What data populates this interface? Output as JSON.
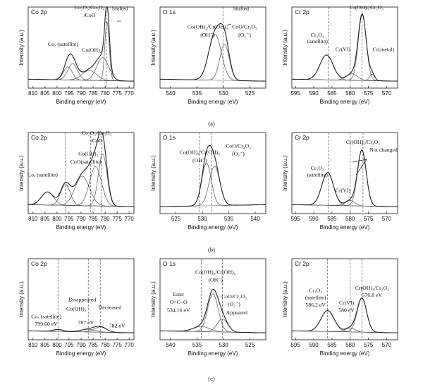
{
  "chart_data": {
    "type": "line",
    "rows": [
      {
        "caption": "(a)",
        "panels": [
          {
            "element": "Co 2p",
            "xlabel": "Binding energy (eV)",
            "ylabel": "Intensity (a.u.)",
            "xrange": [
              812,
              768
            ],
            "xticks": [
              810,
              805,
              800,
              795,
              790,
              785,
              780,
              775,
              770
            ],
            "dashes": [
              779.5
            ],
            "peaks": [
              {
                "center": 795.5,
                "height": 0.2,
                "width": 1.8
              },
              {
                "center": 793.5,
                "height": 0.25,
                "width": 2.0
              },
              {
                "center": 786.5,
                "height": 0.15,
                "width": 3.0
              },
              {
                "center": 781.0,
                "height": 0.35,
                "width": 2.5
              },
              {
                "center": 779.2,
                "height": 0.9,
                "width": 0.9
              }
            ],
            "annotations": [
              {
                "text": "Co₂O₃/Co₃O₄",
                "x": 786.5,
                "y": 1.12
              },
              {
                "text": "/CoO",
                "x": 786.5,
                "y": 1.0
              },
              {
                "text": "Shifted",
                "x": 773.0,
                "y": 1.1
              },
              {
                "text": "Co(OH)₂",
                "x": 785.5,
                "y": 0.47
              },
              {
                "text": "Coₓ (satellite)",
                "x": 797.5,
                "y": 0.56
              }
            ]
          },
          {
            "element": "O 1s",
            "xlabel": "Binding energy (eV)",
            "ylabel": "Intensity (a.u.)",
            "xrange": [
              542,
              522
            ],
            "xticks": [
              540,
              535,
              530,
              525
            ],
            "dashes": [
              530.1
            ],
            "peaks": [
              {
                "center": 531.6,
                "height": 0.7,
                "width": 1.2
              },
              {
                "center": 529.8,
                "height": 0.55,
                "width": 0.9
              }
            ],
            "annotations": [
              {
                "text": "Shifted",
                "x": 526.7,
                "y": 1.1
              },
              {
                "text": "Co(OH)₂/Cr(OH)₃",
                "x": 533.0,
                "y": 0.82
              },
              {
                "text": "(OH⁻)",
                "x": 533.0,
                "y": 0.7
              },
              {
                "text": "CoO/Cr₂O₃",
                "x": 526.0,
                "y": 0.82
              },
              {
                "text": "(O₂⁻)",
                "x": 526.0,
                "y": 0.7
              }
            ]
          },
          {
            "element": "Cr 2p",
            "xlabel": "Binding energy (eV)",
            "ylabel": "Intensity (a.u.)",
            "xrange": [
              596,
              567
            ],
            "xticks": [
              595,
              590,
              585,
              580,
              575,
              570
            ],
            "dashes": [
              586,
              580,
              576.8
            ],
            "peaks": [
              {
                "center": 586.5,
                "height": 0.38,
                "width": 1.8
              },
              {
                "center": 579.5,
                "height": 0.1,
                "width": 1.5
              },
              {
                "center": 576.7,
                "height": 1.0,
                "width": 1.1
              },
              {
                "center": 574.0,
                "height": 0.1,
                "width": 0.7
              }
            ],
            "annotations": [
              {
                "text": "Cr(OH)₃/Cr₂O₃",
                "x": 575.5,
                "y": 1.12
              },
              {
                "text": "Cr₂O₃",
                "x": 589.0,
                "y": 0.7
              },
              {
                "text": "(satellite)",
                "x": 589.0,
                "y": 0.6
              },
              {
                "text": "Cr(VI)",
                "x": 582.0,
                "y": 0.48
              },
              {
                "text": "Cr(metal)",
                "x": 570.8,
                "y": 0.48
              }
            ]
          }
        ]
      },
      {
        "caption": "(b)",
        "panels": [
          {
            "element": "Co 2p",
            "xlabel": "Binding energy (eV)",
            "ylabel": "Intensity (a.u.)",
            "xrange": [
              812,
              768
            ],
            "xticks": [
              810,
              805,
              800,
              795,
              790,
              785,
              780,
              775,
              770
            ],
            "dashes": [
              796.5,
              786,
              781.5
            ],
            "peaks": [
              {
                "center": 804.0,
                "height": 0.2,
                "width": 2.5
              },
              {
                "center": 796.5,
                "height": 0.32,
                "width": 2.0
              },
              {
                "center": 789.5,
                "height": 0.45,
                "width": 3.0
              },
              {
                "center": 784.0,
                "height": 0.6,
                "width": 2.5
              },
              {
                "center": 781.0,
                "height": 0.8,
                "width": 1.8
              }
            ],
            "annotations": [
              {
                "text": "Co₂O₃/Co₃O₄",
                "x": 783.5,
                "y": 1.12
              },
              {
                "text": "/CoO",
                "x": 783.5,
                "y": 1.0
              },
              {
                "text": "Co(OH)₂",
                "x": 787.0,
                "y": 0.8
              },
              {
                "text": "CoO(satellite)",
                "x": 788.0,
                "y": 0.68
              },
              {
                "text": "Coₓ (satellite)",
                "x": 806.0,
                "y": 0.48
              }
            ]
          },
          {
            "element": "O 1s",
            "xlabel": "Binding energy (eV)",
            "ylabel": "Intensity (a.u.)",
            "xrange": [
              522,
              542
            ],
            "xticks": [
              525,
              530,
              535,
              540
            ],
            "dashes": [
              529.5,
              531.8
            ],
            "peaks": [
              {
                "center": 530.8,
                "height": 0.65,
                "width": 0.9
              },
              {
                "center": 532.3,
                "height": 0.6,
                "width": 1.0
              }
            ],
            "annotations": [
              {
                "text": "Co(OH)₂/Cr(OH)₃",
                "x": 529.5,
                "y": 0.82
              },
              {
                "text": "(OH⁻)",
                "x": 529.5,
                "y": 0.7
              },
              {
                "text": "CoO/Cr₂O₃",
                "x": 536.8,
                "y": 0.92
              },
              {
                "text": "(O₂⁻)",
                "x": 536.8,
                "y": 0.8
              }
            ]
          },
          {
            "element": "Cr 2p",
            "xlabel": "Binding energy (eV)",
            "ylabel": "Intensity (a.u.)",
            "xrange": [
              596,
              567
            ],
            "xticks": [
              595,
              590,
              585,
              580,
              575,
              570
            ],
            "dashes": [
              586,
              580,
              576.5
            ],
            "peaks": [
              {
                "center": 586.2,
                "height": 0.5,
                "width": 1.6
              },
              {
                "center": 580.0,
                "height": 0.08,
                "width": 1.3
              },
              {
                "center": 576.8,
                "height": 0.85,
                "width": 1.2
              }
            ],
            "annotations": [
              {
                "text": "Cr(OH)₃/Cr₂O₃",
                "x": 576.5,
                "y": 0.98
              },
              {
                "text": "Not changed",
                "x": 570.0,
                "y": 0.86
              },
              {
                "text": "Cr₂O₃",
                "x": 589.0,
                "y": 0.58
              },
              {
                "text": "(satellite)",
                "x": 589.0,
                "y": 0.48
              },
              {
                "text": "Cr(VI)",
                "x": 582.0,
                "y": 0.24
              }
            ]
          }
        ]
      },
      {
        "caption": "(c)",
        "panels": [
          {
            "element": "Co 2p",
            "xlabel": "Binding energy (eV)",
            "ylabel": "Intensity (a.u.)",
            "xrange": [
              812,
              768
            ],
            "xticks": [
              810,
              805,
              800,
              795,
              790,
              785,
              780,
              775,
              770
            ],
            "dashes": [
              799.6,
              787,
              782
            ],
            "peaks": [
              {
                "center": 799.6,
                "height": 0.03,
                "width": 2.0
              },
              {
                "center": 787.0,
                "height": 0.04,
                "width": 3.0
              },
              {
                "center": 782.0,
                "height": 0.08,
                "width": 2.5
              }
            ],
            "annotations": [
              {
                "text": "Disappeared",
                "x": 789.5,
                "y": 0.5
              },
              {
                "text": "Decreased",
                "x": 778.0,
                "y": 0.38
              },
              {
                "text": "Co(OH)₂",
                "x": 792.0,
                "y": 0.36
              },
              {
                "text": "Coₓ (satellite)",
                "x": 804.5,
                "y": 0.24
              },
              {
                "text": "799.60 eV",
                "x": 804.5,
                "y": 0.13
              },
              {
                "text": "787 eV",
                "x": 788.0,
                "y": 0.15
              },
              {
                "text": "782 eV",
                "x": 775.0,
                "y": 0.1
              }
            ]
          },
          {
            "element": "O 1s",
            "xlabel": "Binding energy (eV)",
            "ylabel": "Intensity (a.u.)",
            "xrange": [
              542,
              522
            ],
            "xticks": [
              540,
              535,
              530,
              525
            ],
            "dashes": [
              534.2,
              530.2
            ],
            "peaks": [
              {
                "center": 534.2,
                "height": 0.08,
                "width": 1.5
              },
              {
                "center": 532.0,
                "height": 0.58,
                "width": 1.0
              },
              {
                "center": 530.2,
                "height": 0.2,
                "width": 1.0
              }
            ],
            "annotations": [
              {
                "text": "Co(OH)₂/Cr(OH)₃",
                "x": 531.5,
                "y": 0.92
              },
              {
                "text": "(OH⁻)",
                "x": 531.5,
                "y": 0.8
              },
              {
                "text": "Ester",
                "x": 538.5,
                "y": 0.58
              },
              {
                "text": "O=C–O",
                "x": 538.5,
                "y": 0.46
              },
              {
                "text": "534.16 eV",
                "x": 538.5,
                "y": 0.34
              },
              {
                "text": "CoO/Cr₂O₃",
                "x": 528.0,
                "y": 0.55
              },
              {
                "text": "(O₂⁻)",
                "x": 528.0,
                "y": 0.43
              },
              {
                "text": "Appeared",
                "x": 527.5,
                "y": 0.3
              }
            ]
          },
          {
            "element": "Cr 2p",
            "xlabel": "Binding energy (eV)",
            "ylabel": "Intensity (a.u.)",
            "xrange": [
              596,
              567
            ],
            "xticks": [
              595,
              590,
              585,
              580,
              575,
              570
            ],
            "dashes": [
              586.2,
              580,
              576.8
            ],
            "peaks": [
              {
                "center": 586.2,
                "height": 0.32,
                "width": 1.8
              },
              {
                "center": 580.0,
                "height": 0.06,
                "width": 1.3
              },
              {
                "center": 576.8,
                "height": 0.52,
                "width": 1.3
              }
            ],
            "annotations": [
              {
                "text": "Cr₂O₃",
                "x": 589.5,
                "y": 0.64
              },
              {
                "text": "(satellite)",
                "x": 589.5,
                "y": 0.53
              },
              {
                "text": "586.2 eV",
                "x": 589.5,
                "y": 0.42
              },
              {
                "text": "Cr(VI)",
                "x": 581.0,
                "y": 0.45
              },
              {
                "text": "580 eV",
                "x": 581.0,
                "y": 0.34
              },
              {
                "text": "Cr(OH)₃/Cr₂O₃",
                "x": 574.0,
                "y": 0.68
              },
              {
                "text": "576.8 eV",
                "x": 574.0,
                "y": 0.57
              }
            ]
          }
        ]
      }
    ]
  }
}
